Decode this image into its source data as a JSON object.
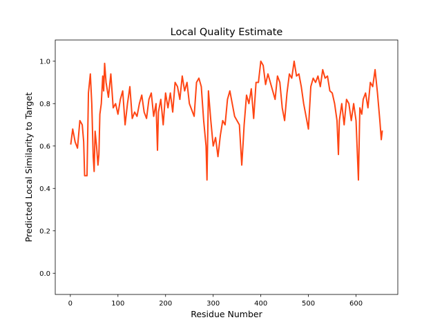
{
  "chart_data": {
    "type": "line",
    "title": "Local Quality Estimate",
    "x_label": "Residue Number",
    "y_label": "Predicted Local Similarity to Target",
    "x": [
      1,
      5,
      10,
      15,
      20,
      25,
      28,
      30,
      35,
      38,
      42,
      45,
      48,
      50,
      52,
      55,
      58,
      60,
      62,
      65,
      68,
      70,
      72,
      75,
      80,
      85,
      90,
      95,
      100,
      105,
      110,
      115,
      120,
      125,
      130,
      135,
      140,
      145,
      150,
      155,
      160,
      165,
      170,
      175,
      180,
      183,
      185,
      190,
      195,
      200,
      205,
      210,
      215,
      220,
      225,
      230,
      235,
      240,
      245,
      250,
      255,
      260,
      265,
      270,
      275,
      280,
      285,
      287,
      290,
      295,
      300,
      305,
      310,
      315,
      320,
      325,
      330,
      335,
      340,
      345,
      350,
      355,
      360,
      363,
      365,
      370,
      375,
      380,
      385,
      390,
      395,
      400,
      405,
      410,
      415,
      420,
      425,
      430,
      435,
      440,
      445,
      450,
      455,
      460,
      465,
      470,
      475,
      480,
      485,
      490,
      495,
      500,
      505,
      510,
      515,
      520,
      525,
      530,
      535,
      540,
      545,
      550,
      555,
      560,
      563,
      565,
      570,
      575,
      580,
      585,
      590,
      595,
      600,
      605,
      608,
      612,
      615,
      620,
      625,
      630,
      635,
      640,
      645,
      650,
      653,
      655
    ],
    "series": [
      {
        "color": "#ff4513",
        "values": [
          0.61,
          0.68,
          0.62,
          0.59,
          0.72,
          0.7,
          0.62,
          0.46,
          0.46,
          0.85,
          0.94,
          0.8,
          0.55,
          0.48,
          0.67,
          0.6,
          0.51,
          0.56,
          0.75,
          0.8,
          0.93,
          0.86,
          0.99,
          0.9,
          0.83,
          0.94,
          0.78,
          0.8,
          0.75,
          0.82,
          0.86,
          0.7,
          0.8,
          0.88,
          0.73,
          0.76,
          0.74,
          0.8,
          0.84,
          0.76,
          0.73,
          0.82,
          0.85,
          0.74,
          0.8,
          0.58,
          0.76,
          0.82,
          0.7,
          0.85,
          0.78,
          0.85,
          0.76,
          0.9,
          0.88,
          0.82,
          0.93,
          0.86,
          0.9,
          0.8,
          0.77,
          0.74,
          0.9,
          0.92,
          0.88,
          0.72,
          0.6,
          0.44,
          0.86,
          0.72,
          0.6,
          0.64,
          0.55,
          0.65,
          0.72,
          0.7,
          0.82,
          0.86,
          0.8,
          0.74,
          0.72,
          0.7,
          0.51,
          0.62,
          0.7,
          0.84,
          0.8,
          0.87,
          0.73,
          0.9,
          0.9,
          1.0,
          0.98,
          0.89,
          0.94,
          0.9,
          0.86,
          0.82,
          0.93,
          0.9,
          0.78,
          0.72,
          0.85,
          0.94,
          0.92,
          1.0,
          0.93,
          0.94,
          0.88,
          0.8,
          0.74,
          0.68,
          0.88,
          0.92,
          0.9,
          0.93,
          0.88,
          0.96,
          0.92,
          0.93,
          0.86,
          0.85,
          0.8,
          0.72,
          0.56,
          0.72,
          0.8,
          0.7,
          0.82,
          0.8,
          0.72,
          0.8,
          0.72,
          0.44,
          0.78,
          0.75,
          0.82,
          0.85,
          0.78,
          0.9,
          0.88,
          0.96,
          0.85,
          0.72,
          0.63,
          0.67
        ]
      }
    ],
    "xlim": [
      -31.7,
      687.7
    ],
    "xticks": [
      0,
      100,
      200,
      300,
      400,
      500,
      600
    ],
    "ylim": [
      -0.1,
      1.1
    ],
    "yticks": [
      {
        "value": 0,
        "label": "0.0"
      },
      0.2,
      0.4,
      0.6,
      0.8,
      {
        "value": 1,
        "label": "1.0"
      }
    ],
    "grid": false
  }
}
